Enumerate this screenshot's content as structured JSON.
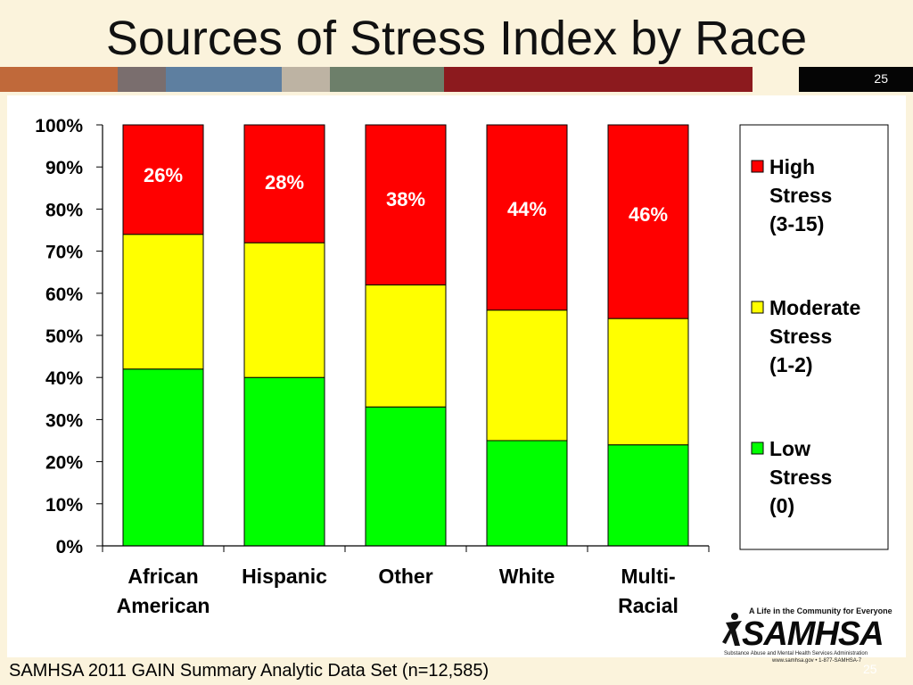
{
  "slide": {
    "title": "Sources of Stress Index by Race",
    "slide_number": "25",
    "footer": "SAMHSA 2011 GAIN Summary Analytic Data Set (n=12,585)"
  },
  "logo": {
    "tagline": "A Life in the Community for Everyone",
    "name": "SAMHSA",
    "subtitle": "Substance Abuse and Mental Health Services Administration",
    "contact": "www.samhsa.gov • 1-877-SAMHSA-7"
  },
  "colors": {
    "high": "#FF0000",
    "moderate": "#FFFF00",
    "low": "#00FF00",
    "band": [
      "#C0693A",
      "#7A6E6E",
      "#5E7FA0",
      "#BDB3A3",
      "#6D7F6A",
      "#8C1A1E",
      "#FBF3DC",
      "#050505"
    ]
  },
  "chart_data": {
    "type": "bar",
    "stacked": true,
    "categories": [
      "African\nAmerican",
      "Hispanic",
      "Other",
      "White",
      "Multi-\nRacial"
    ],
    "series": [
      {
        "name": "Low Stress (0)",
        "values": [
          42,
          40,
          33,
          25,
          24
        ]
      },
      {
        "name": "Moderate Stress (1-2)",
        "values": [
          32,
          32,
          29,
          31,
          30
        ]
      },
      {
        "name": "High Stress (3-15)",
        "values": [
          26,
          28,
          38,
          44,
          46
        ]
      }
    ],
    "data_labels": [
      "26%",
      "28%",
      "38%",
      "44%",
      "46%"
    ],
    "yticks": [
      "0%",
      "10%",
      "20%",
      "30%",
      "40%",
      "50%",
      "60%",
      "70%",
      "80%",
      "90%",
      "100%"
    ],
    "ylim": [
      0,
      100
    ],
    "legend": [
      {
        "lines": [
          "High",
          "Stress",
          "(3-15)"
        ]
      },
      {
        "lines": [
          "Moderate",
          "Stress",
          "(1-2)"
        ]
      },
      {
        "lines": [
          "Low",
          "Stress",
          "(0)"
        ]
      }
    ],
    "legend_position": "right",
    "grid": false
  }
}
